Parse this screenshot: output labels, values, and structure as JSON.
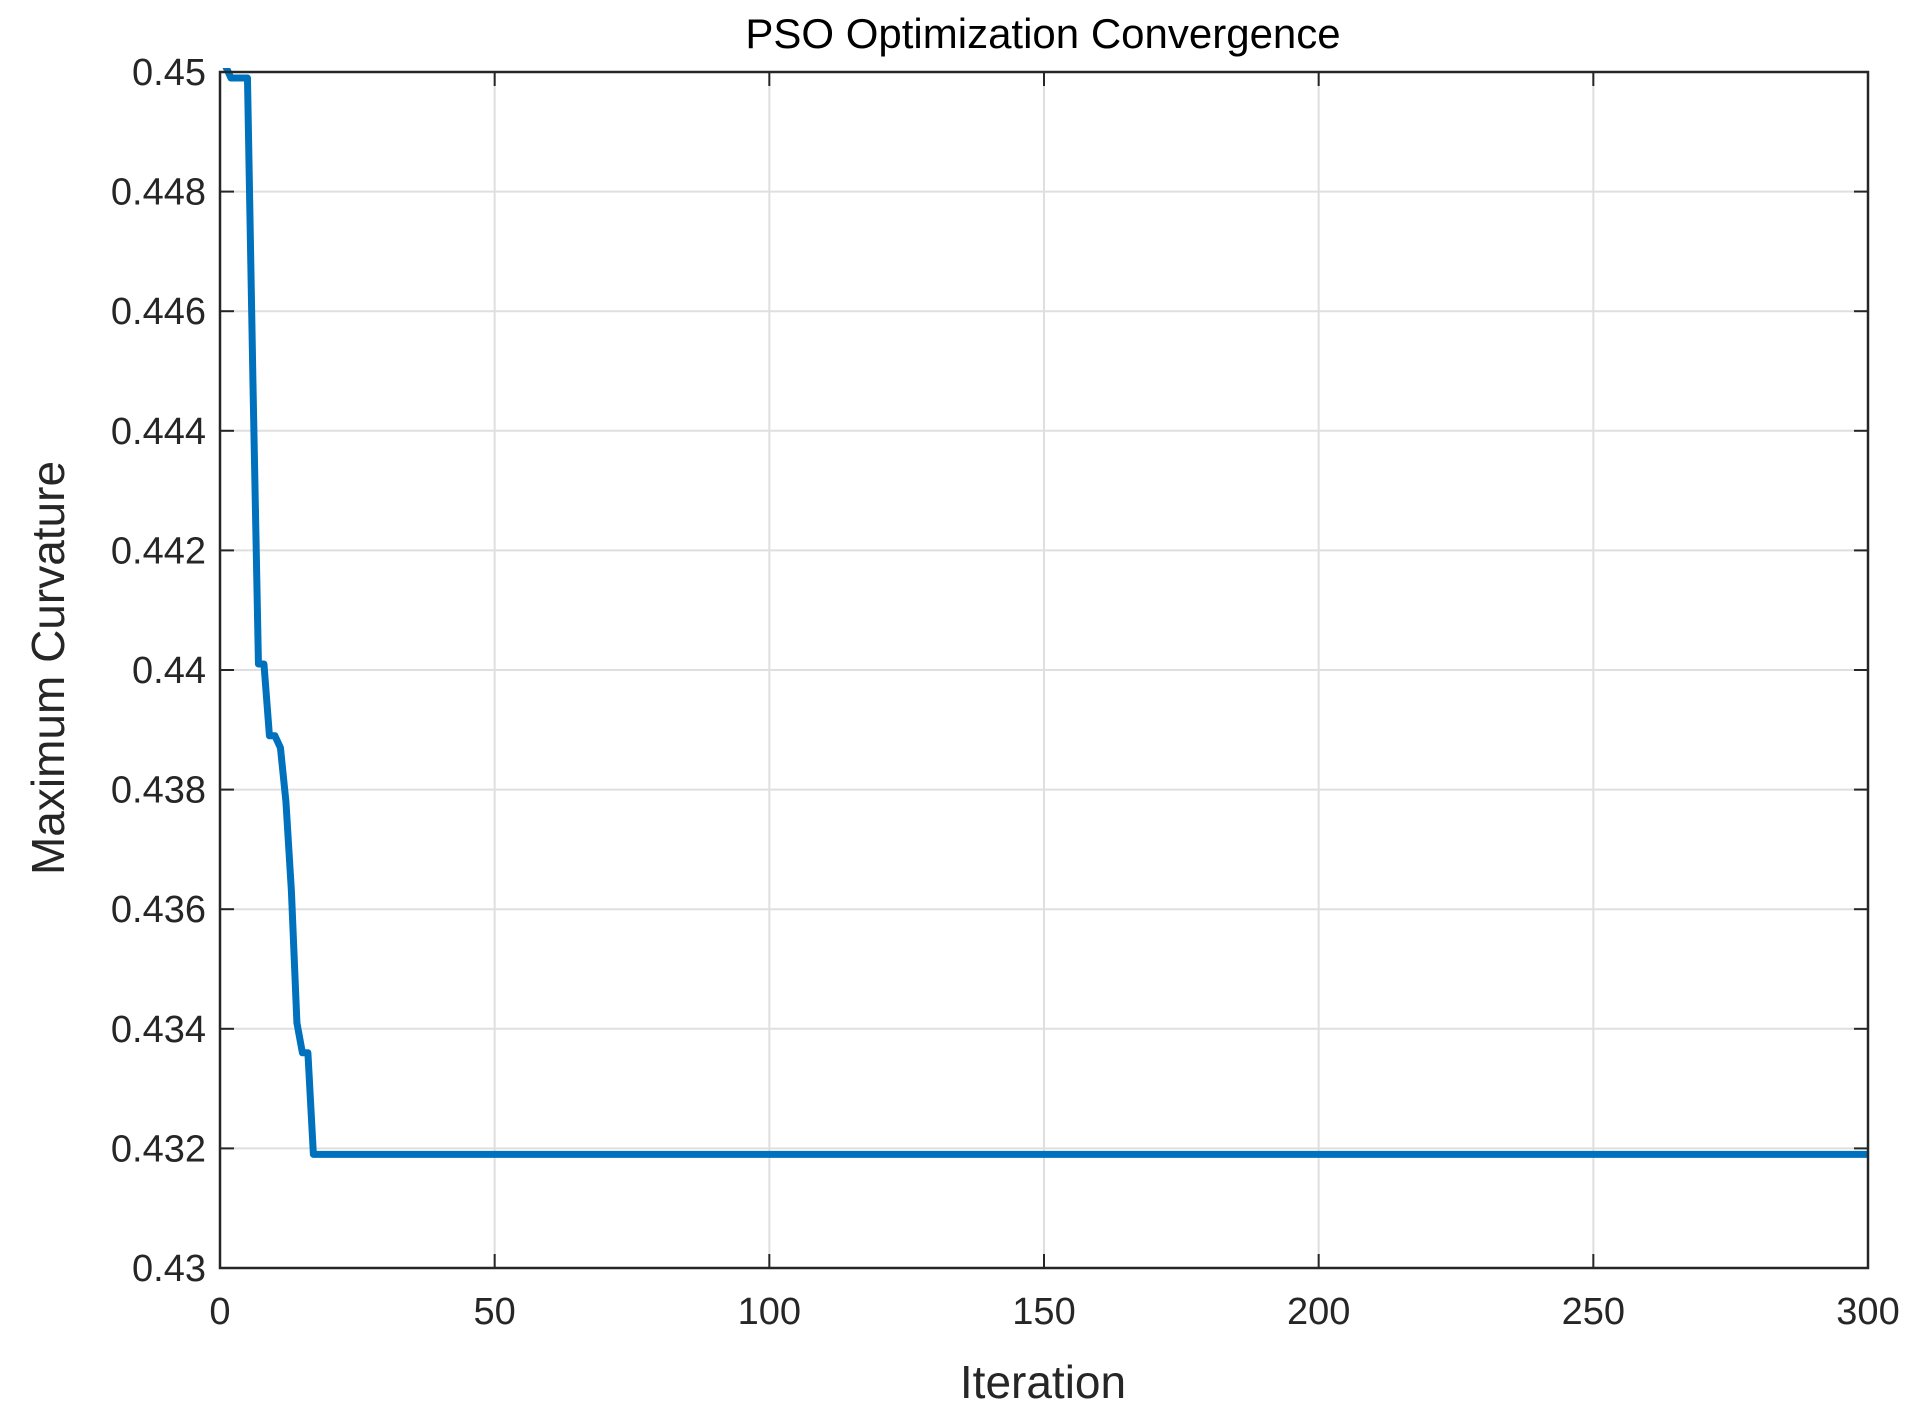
{
  "chart_data": {
    "type": "line",
    "title": "PSO Optimization Convergence",
    "xlabel": "Iteration",
    "ylabel": "Maximum Curvature",
    "xlim": [
      0,
      300
    ],
    "ylim": [
      0.43,
      0.45
    ],
    "xticks": [
      0,
      50,
      100,
      150,
      200,
      250,
      300
    ],
    "xtick_labels": [
      "0",
      "50",
      "100",
      "150",
      "200",
      "250",
      "300"
    ],
    "yticks": [
      0.43,
      0.432,
      0.434,
      0.436,
      0.438,
      0.44,
      0.442,
      0.444,
      0.446,
      0.448,
      0.45
    ],
    "ytick_labels": [
      "0.43",
      "0.432",
      "0.434",
      "0.436",
      "0.438",
      "0.44",
      "0.442",
      "0.444",
      "0.446",
      "0.448",
      "0.45"
    ],
    "grid": true,
    "series": [
      {
        "color": "#0072BD",
        "x": [
          0,
          1,
          2,
          3,
          4,
          5,
          6,
          7,
          8,
          9,
          10,
          11,
          12,
          13,
          14,
          15,
          16,
          17,
          18,
          300
        ],
        "y": [
          0.4502,
          0.4501,
          0.4499,
          0.4499,
          0.4499,
          0.4499,
          0.4448,
          0.4401,
          0.4401,
          0.4389,
          0.4389,
          0.4387,
          0.4378,
          0.4363,
          0.4341,
          0.4336,
          0.4336,
          0.4319,
          0.4319,
          0.4319
        ]
      }
    ]
  }
}
